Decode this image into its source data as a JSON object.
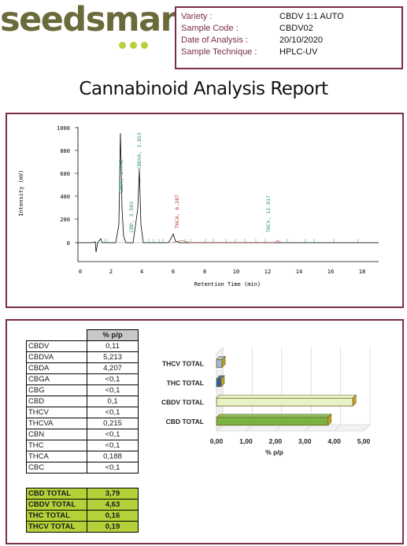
{
  "logo": {
    "text": "seedsman",
    "tm": "™"
  },
  "info": {
    "rows": [
      {
        "label": "Variety :",
        "value": "CBDV 1:1 AUTO"
      },
      {
        "label": "Sample Code :",
        "value": "CBDV02"
      },
      {
        "label": "Date of Analysis :",
        "value": "20/10/2020"
      },
      {
        "label": "Sample Technique :",
        "value": "HPLC-UV"
      }
    ]
  },
  "title": "Cannabinoid Analysis Report",
  "chromatogram": {
    "ylabel": "Intensity (mV)",
    "xlabel": "Retention Time (min)",
    "yticks": [
      "1000",
      "800",
      "600",
      "400",
      "200",
      "0"
    ],
    "xticks": [
      "0",
      "2",
      "4",
      "6",
      "8",
      "10",
      "12",
      "14",
      "16",
      "18"
    ],
    "peak_labels": [
      "CBDV, 2.742",
      "CBDVA, 3.853",
      "THCA, 6.287",
      "THCV, 12.017",
      "CBD, 3.583"
    ]
  },
  "table": {
    "header": "% p/p",
    "rows": [
      {
        "name": "CBDV",
        "value": "0,11"
      },
      {
        "name": "CBDVA",
        "value": "5,213"
      },
      {
        "name": "CBDA",
        "value": "4,207"
      },
      {
        "name": "CBGA",
        "value": "<0,1"
      },
      {
        "name": "CBG",
        "value": "<0,1"
      },
      {
        "name": "CBD",
        "value": "0,1"
      },
      {
        "name": "THCV",
        "value": "<0,1"
      },
      {
        "name": "THCVA",
        "value": "0,215"
      },
      {
        "name": "CBN",
        "value": "<0,1"
      },
      {
        "name": "THC",
        "value": "<0,1"
      },
      {
        "name": "THCA",
        "value": "0,188"
      },
      {
        "name": "CBC",
        "value": "<0,1"
      }
    ]
  },
  "totals": [
    {
      "name": "CBD TOTAL",
      "value": "3,79"
    },
    {
      "name": "CBDV TOTAL",
      "value": "4,63"
    },
    {
      "name": "THC TOTAL",
      "value": "0,16"
    },
    {
      "name": "THCV TOTAL",
      "value": "0,19"
    }
  ],
  "chart_data": {
    "type": "bar",
    "orientation": "horizontal",
    "categories": [
      "THCV TOTAL",
      "THC TOTAL",
      "CBDV TOTAL",
      "CBD TOTAL"
    ],
    "values": [
      0.19,
      0.16,
      4.63,
      3.79
    ],
    "xlabel": "% p/p",
    "xlim": [
      0,
      5
    ],
    "xticks": [
      "0,00",
      "1,00",
      "2,00",
      "3,00",
      "4,00",
      "5,00"
    ],
    "colors": [
      "#9fb7d8",
      "#2f5f9e",
      "#e9f2c4",
      "#7ab344"
    ],
    "grid": true
  }
}
